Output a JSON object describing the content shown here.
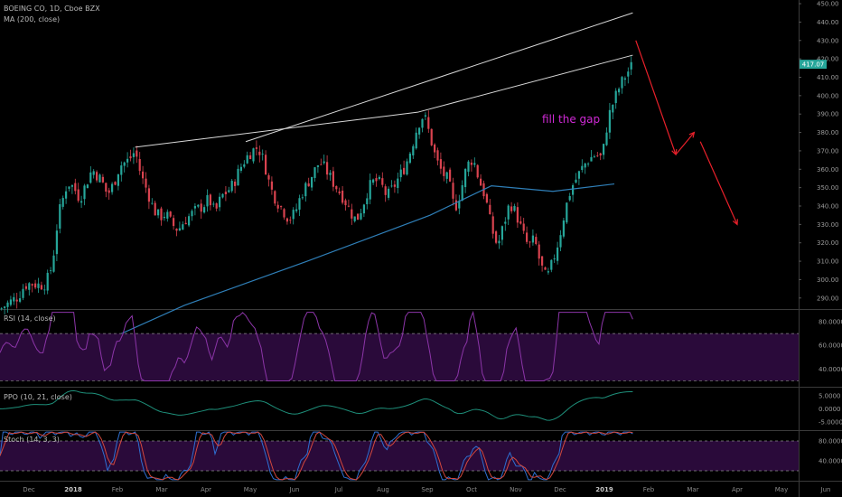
{
  "legend": {
    "symbol_line": "BOEING CO, 1D, Cboe BZX",
    "ma_line": "MA (200, close)",
    "rsi_line": "RSI (14, close)",
    "ppo_line": "PPO (10, 21, close)",
    "stoch_line": "Stoch (14, 3, 3)"
  },
  "annotation": {
    "text": "fill the gap",
    "color": "#d02ad6"
  },
  "colors": {
    "up": "#26a69a",
    "down": "#d9434f",
    "ma": "#2f7fb8",
    "trendline": "#d8d8d8",
    "arrow": "#e8202a",
    "rsi": "#8c35a8",
    "band": "#2a0a3a",
    "ppo": "#1e8f7a",
    "stoch_k": "#2e6fd1",
    "stoch_d": "#d2473d",
    "price_tag": "#26a69a"
  },
  "chart_data": [
    {
      "type": "candlestick",
      "series": [
        {
          "name": "BOEING CO, 1D, Cboe BZX"
        },
        {
          "name": "MA (200, close)"
        }
      ],
      "x_ticks": [
        "Dec",
        "2018",
        "Feb",
        "Mar",
        "Apr",
        "May",
        "Jun",
        "Jul",
        "Aug",
        "Sep",
        "Oct",
        "Nov",
        "Dec",
        "2019",
        "Feb",
        "Mar",
        "Apr",
        "May",
        "Jun"
      ],
      "y_ticks": [
        290,
        300,
        310,
        320,
        330,
        340,
        350,
        360,
        370,
        380,
        390,
        400,
        410,
        420,
        430,
        440,
        450
      ],
      "ylim": [
        284,
        452
      ],
      "last_price": "417.07",
      "close_path": [
        [
          0,
          284
        ],
        [
          6,
          291
        ],
        [
          8,
          297
        ],
        [
          10,
          298
        ],
        [
          13,
          297
        ],
        [
          15,
          298
        ],
        [
          17,
          308
        ],
        [
          19,
          335
        ],
        [
          22,
          353
        ],
        [
          24,
          350
        ],
        [
          26,
          344
        ],
        [
          28,
          352
        ],
        [
          30,
          360
        ],
        [
          33,
          354
        ],
        [
          35,
          346
        ],
        [
          37,
          352
        ],
        [
          39,
          362
        ],
        [
          42,
          365
        ],
        [
          44,
          370
        ],
        [
          46,
          356
        ],
        [
          48,
          348
        ],
        [
          50,
          338
        ],
        [
          52,
          334
        ],
        [
          54,
          336
        ],
        [
          56,
          330
        ],
        [
          58,
          327
        ],
        [
          60,
          332
        ],
        [
          62,
          335
        ],
        [
          64,
          338
        ],
        [
          66,
          340
        ],
        [
          68,
          344
        ],
        [
          70,
          336
        ],
        [
          72,
          345
        ],
        [
          74,
          348
        ],
        [
          76,
          352
        ],
        [
          78,
          360
        ],
        [
          80,
          366
        ],
        [
          82,
          370
        ],
        [
          84,
          372
        ],
        [
          86,
          364
        ],
        [
          88,
          350
        ],
        [
          90,
          343
        ],
        [
          92,
          338
        ],
        [
          94,
          333
        ],
        [
          96,
          336
        ],
        [
          98,
          346
        ],
        [
          100,
          352
        ],
        [
          102,
          358
        ],
        [
          104,
          364
        ],
        [
          106,
          360
        ],
        [
          108,
          354
        ],
        [
          110,
          349
        ],
        [
          112,
          344
        ],
        [
          114,
          337
        ],
        [
          116,
          332
        ],
        [
          118,
          340
        ],
        [
          120,
          350
        ],
        [
          122,
          354
        ],
        [
          124,
          352
        ],
        [
          126,
          345
        ],
        [
          128,
          350
        ],
        [
          130,
          356
        ],
        [
          132,
          362
        ],
        [
          134,
          372
        ],
        [
          136,
          384
        ],
        [
          138,
          390
        ],
        [
          140,
          378
        ],
        [
          142,
          365
        ],
        [
          144,
          358
        ],
        [
          146,
          354
        ],
        [
          148,
          338
        ],
        [
          150,
          348
        ],
        [
          152,
          362
        ],
        [
          154,
          366
        ],
        [
          156,
          354
        ],
        [
          158,
          345
        ],
        [
          160,
          328
        ],
        [
          162,
          318
        ],
        [
          164,
          330
        ],
        [
          166,
          342
        ],
        [
          168,
          336
        ],
        [
          170,
          326
        ],
        [
          172,
          318
        ],
        [
          174,
          322
        ],
        [
          176,
          308
        ],
        [
          178,
          300
        ],
        [
          180,
          310
        ],
        [
          182,
          322
        ],
        [
          184,
          338
        ],
        [
          186,
          350
        ],
        [
          188,
          356
        ],
        [
          190,
          362
        ],
        [
          192,
          366
        ],
        [
          194,
          368
        ],
        [
          196,
          366
        ],
        [
          198,
          388
        ],
        [
          200,
          398
        ],
        [
          202,
          406
        ],
        [
          204,
          412
        ],
        [
          206,
          417
        ]
      ],
      "ma_200": [
        [
          20,
          256
        ],
        [
          60,
          286
        ],
        [
          100,
          310
        ],
        [
          140,
          335
        ],
        [
          160,
          351
        ],
        [
          180,
          348
        ],
        [
          200,
          352
        ]
      ],
      "trendlines": [
        [
          [
            44,
            372
          ],
          [
            136,
            391
          ],
          [
            206,
            422
          ]
        ],
        [
          [
            80,
            375
          ],
          [
            206,
            445
          ]
        ]
      ],
      "projection_arrows": [
        [
          [
            207,
            430
          ],
          [
            220,
            368
          ]
        ],
        [
          [
            220,
            368
          ],
          [
            226,
            380
          ]
        ],
        [
          [
            228,
            375
          ],
          [
            240,
            330
          ]
        ]
      ],
      "xlim": [
        0,
        260
      ]
    },
    {
      "type": "line",
      "series": [
        {
          "name": "RSI (14, close)"
        }
      ],
      "y_ticks": [
        40,
        60,
        80
      ],
      "y_tick_labels": [
        "40.0000",
        "60.0000",
        "80.0000"
      ],
      "ylim": [
        25,
        90
      ],
      "band": [
        30,
        70
      ]
    },
    {
      "type": "line",
      "series": [
        {
          "name": "PPO (10, 21, close)"
        }
      ],
      "y_ticks": [
        5,
        0,
        -5
      ],
      "y_tick_labels": [
        "5.0000",
        "0.0000",
        "-5.0000"
      ],
      "ylim": [
        -8,
        8
      ]
    },
    {
      "type": "line",
      "series": [
        {
          "name": "Stoch (14, 3, 3)"
        }
      ],
      "y_ticks": [
        40,
        80
      ],
      "y_tick_labels": [
        "40.0000",
        "80.0000"
      ],
      "ylim": [
        0,
        100
      ],
      "band": [
        20,
        80
      ]
    }
  ]
}
